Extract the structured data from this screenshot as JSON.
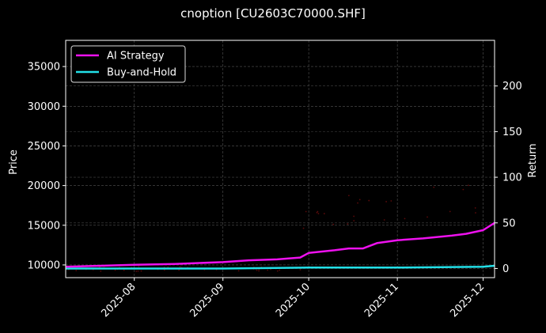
{
  "chart_data": {
    "type": "line",
    "title": "cnoption [CU2603C70000.SHF]",
    "xlabel": "",
    "ylabel": "Price",
    "y2label": "Return",
    "x_ticks": [
      "2025-08",
      "2025-09",
      "2025-10",
      "2025-11",
      "2025-12"
    ],
    "y_ticks": [
      10000,
      15000,
      20000,
      25000,
      30000,
      35000
    ],
    "y2_ticks": [
      0,
      50,
      100,
      150,
      200
    ],
    "ylim": [
      8400,
      38300
    ],
    "y2lim": [
      -10,
      250
    ],
    "xlim": [
      "2025-07-08",
      "2025-12-05"
    ],
    "grid": true,
    "legend_position": "upper left",
    "series": [
      {
        "name": "AI Strategy",
        "axis": "right",
        "color": "#ee11ee",
        "x": [
          "2025-07-08",
          "2025-07-20",
          "2025-08-01",
          "2025-08-15",
          "2025-09-01",
          "2025-09-10",
          "2025-09-20",
          "2025-09-28",
          "2025-10-01",
          "2025-10-10",
          "2025-10-15",
          "2025-10-20",
          "2025-10-25",
          "2025-11-01",
          "2025-11-10",
          "2025-11-20",
          "2025-11-25",
          "2025-12-01",
          "2025-12-05"
        ],
        "values": [
          2,
          3,
          4,
          5,
          7,
          9,
          10,
          12,
          17,
          20,
          22,
          22,
          28,
          31,
          33,
          36,
          38,
          42,
          50
        ]
      },
      {
        "name": "Buy-and-Hold",
        "axis": "right",
        "color": "#22e0e8",
        "x": [
          "2025-07-08",
          "2025-08-01",
          "2025-09-01",
          "2025-10-01",
          "2025-11-01",
          "2025-12-01",
          "2025-12-05"
        ],
        "values": [
          0,
          0,
          0,
          1,
          1,
          2,
          3
        ]
      }
    ],
    "scatter": {
      "name": "price points",
      "axis": "left",
      "color": "#5a0a0a",
      "description": "faint dark-red price markers, mostly near 9000-9500 before Oct, rising to ~15000-19000 Oct-Dec"
    }
  },
  "legend": {
    "items": [
      {
        "label": "AI Strategy",
        "color": "#ee11ee"
      },
      {
        "label": "Buy-and-Hold",
        "color": "#22e0e8"
      }
    ]
  }
}
